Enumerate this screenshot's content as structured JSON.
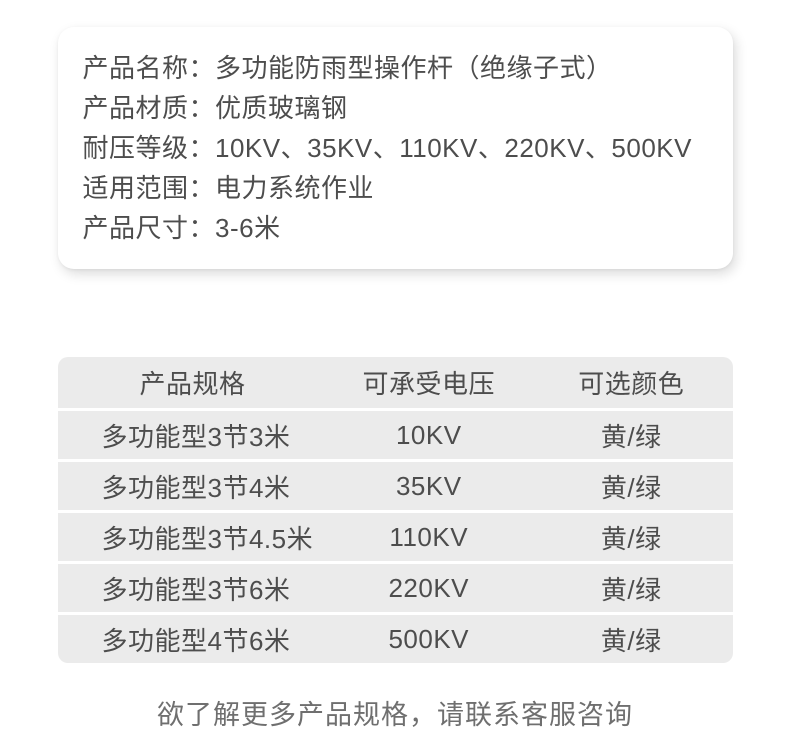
{
  "info_card": {
    "rows": [
      {
        "label": "产品名称：",
        "value": "多功能防雨型操作杆（绝缘子式）"
      },
      {
        "label": "产品材质：",
        "value": "优质玻璃钢"
      },
      {
        "label": "耐压等级：",
        "value": "10KV、35KV、110KV、220KV、500KV"
      },
      {
        "label": "适用范围：",
        "value": "电力系统作业"
      },
      {
        "label": "产品尺寸：",
        "value": "3-6米"
      }
    ]
  },
  "spec_table": {
    "headers": [
      "产品规格",
      "可承受电压",
      "可选颜色"
    ],
    "rows": [
      [
        "多功能型3节3米",
        "10KV",
        "黄/绿"
      ],
      [
        "多功能型3节4米",
        "35KV",
        "黄/绿"
      ],
      [
        "多功能型3节4.5米",
        "110KV",
        "黄/绿"
      ],
      [
        "多功能型3节6米",
        "220KV",
        "黄/绿"
      ],
      [
        "多功能型4节6米",
        "500KV",
        "黄/绿"
      ]
    ]
  },
  "footer": {
    "note": "欲了解更多产品规格，请联系客服咨询"
  },
  "colors": {
    "page_background": "#ffffff",
    "card_background": "#ffffff",
    "table_row_background": "#ebebeb",
    "primary_text": "#4d4d4d",
    "footer_text": "#6f6f6f"
  }
}
